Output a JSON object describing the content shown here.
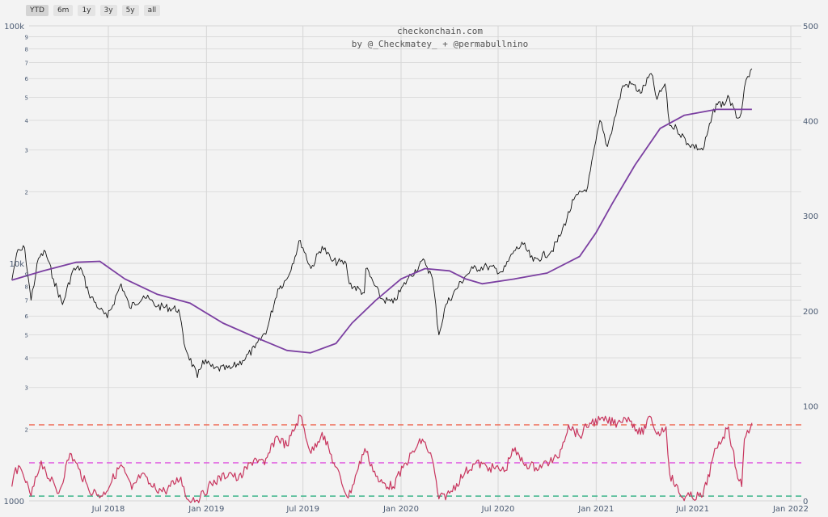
{
  "range_buttons": [
    {
      "label": "YTD",
      "active": true
    },
    {
      "label": "6m",
      "active": false
    },
    {
      "label": "1y",
      "active": false
    },
    {
      "label": "3y",
      "active": false
    },
    {
      "label": "5y",
      "active": false
    },
    {
      "label": "all",
      "active": false
    }
  ],
  "credits": {
    "line1": "checkonchain.com",
    "line2": "by @_Checkmatey_ + @permabullnino"
  },
  "colors": {
    "price": "#111111",
    "moving_average": "#7b3fa1",
    "oscillator": "#c8365f",
    "upper_band": "#ef6a55",
    "mid_band": "#e055e0",
    "lower_band": "#3bb48a",
    "grid": "#d6d6d6",
    "background": "#f3f3f3"
  },
  "chart_data": {
    "type": "line",
    "title": "",
    "x_ticks": [
      "Jul 2018",
      "Jan 2019",
      "Jul 2019",
      "Jan 2020",
      "Jul 2020",
      "Jan 2021",
      "Jul 2021",
      "Jan 2022"
    ],
    "x_range": [
      "2018-01-01",
      "2022-01-01"
    ],
    "price_axis": {
      "scale": "log",
      "range": [
        1000,
        100000
      ],
      "major_labels": [
        "1000",
        "10k",
        "100k"
      ],
      "minor_labels": [
        "2",
        "3",
        "4",
        "5",
        "6",
        "7",
        "8",
        "9"
      ]
    },
    "right_axis": {
      "range": [
        0,
        500
      ],
      "labels": [
        "0",
        "100",
        "200",
        "300",
        "400",
        "500"
      ]
    },
    "series": [
      {
        "role": "price",
        "axis": "left-log",
        "points": [
          [
            "2018-01-01",
            8500
          ],
          [
            "2018-01-10",
            11000
          ],
          [
            "2018-01-25",
            11600
          ],
          [
            "2018-02-06",
            7000
          ],
          [
            "2018-02-20",
            10500
          ],
          [
            "2018-03-05",
            11200
          ],
          [
            "2018-03-20",
            8600
          ],
          [
            "2018-04-06",
            6700
          ],
          [
            "2018-04-25",
            9300
          ],
          [
            "2018-05-10",
            9600
          ],
          [
            "2018-05-25",
            7500
          ],
          [
            "2018-06-15",
            6400
          ],
          [
            "2018-06-29",
            5900
          ],
          [
            "2018-07-25",
            8200
          ],
          [
            "2018-08-10",
            6500
          ],
          [
            "2018-09-05",
            7300
          ],
          [
            "2018-10-01",
            6600
          ],
          [
            "2018-11-10",
            6400
          ],
          [
            "2018-11-20",
            4600
          ],
          [
            "2018-12-15",
            3300
          ],
          [
            "2018-12-25",
            3900
          ],
          [
            "2019-01-15",
            3600
          ],
          [
            "2019-02-15",
            3600
          ],
          [
            "2019-03-10",
            3900
          ],
          [
            "2019-04-02",
            4400
          ],
          [
            "2019-04-25",
            5300
          ],
          [
            "2019-05-15",
            7800
          ],
          [
            "2019-06-01",
            8600
          ],
          [
            "2019-06-26",
            12500
          ],
          [
            "2019-07-16",
            9500
          ],
          [
            "2019-08-06",
            11800
          ],
          [
            "2019-08-25",
            10200
          ],
          [
            "2019-09-20",
            10000
          ],
          [
            "2019-09-26",
            8200
          ],
          [
            "2019-10-24",
            7500
          ],
          [
            "2019-10-27",
            9500
          ],
          [
            "2019-11-25",
            7100
          ],
          [
            "2019-12-17",
            6800
          ],
          [
            "2020-01-15",
            8700
          ],
          [
            "2020-02-14",
            10300
          ],
          [
            "2020-02-29",
            8600
          ],
          [
            "2020-03-12",
            5000
          ],
          [
            "2020-03-25",
            6700
          ],
          [
            "2020-04-30",
            8800
          ],
          [
            "2020-05-15",
            9500
          ],
          [
            "2020-06-10",
            9700
          ],
          [
            "2020-07-10",
            9200
          ],
          [
            "2020-07-31",
            11300
          ],
          [
            "2020-08-17",
            12000
          ],
          [
            "2020-09-05",
            10200
          ],
          [
            "2020-10-10",
            11300
          ],
          [
            "2020-10-25",
            13000
          ],
          [
            "2020-11-20",
            18500
          ],
          [
            "2020-12-16",
            21000
          ],
          [
            "2021-01-08",
            40000
          ],
          [
            "2021-01-22",
            31000
          ],
          [
            "2021-02-20",
            56000
          ],
          [
            "2021-03-10",
            57000
          ],
          [
            "2021-03-25",
            52000
          ],
          [
            "2021-04-14",
            63000
          ],
          [
            "2021-04-25",
            49000
          ],
          [
            "2021-05-10",
            57000
          ],
          [
            "2021-05-19",
            38000
          ],
          [
            "2021-06-01",
            37000
          ],
          [
            "2021-06-22",
            32000
          ],
          [
            "2021-07-20",
            30000
          ],
          [
            "2021-08-14",
            47000
          ],
          [
            "2021-08-31",
            47000
          ],
          [
            "2021-09-05",
            51000
          ],
          [
            "2021-09-21",
            41000
          ],
          [
            "2021-09-30",
            43000
          ],
          [
            "2021-10-06",
            55000
          ],
          [
            "2021-10-15",
            61000
          ],
          [
            "2021-10-20",
            66000
          ]
        ]
      },
      {
        "role": "moving_average",
        "axis": "left-log",
        "points": [
          [
            "2018-01-01",
            8500
          ],
          [
            "2018-03-01",
            9300
          ],
          [
            "2018-05-01",
            10100
          ],
          [
            "2018-06-15",
            10200
          ],
          [
            "2018-08-01",
            8600
          ],
          [
            "2018-10-01",
            7400
          ],
          [
            "2018-12-01",
            6800
          ],
          [
            "2019-02-01",
            5600
          ],
          [
            "2019-04-01",
            4900
          ],
          [
            "2019-06-01",
            4300
          ],
          [
            "2019-07-15",
            4200
          ],
          [
            "2019-09-01",
            4600
          ],
          [
            "2019-10-01",
            5600
          ],
          [
            "2019-11-15",
            7000
          ],
          [
            "2020-01-01",
            8600
          ],
          [
            "2020-02-15",
            9500
          ],
          [
            "2020-04-01",
            9300
          ],
          [
            "2020-05-01",
            8600
          ],
          [
            "2020-06-01",
            8200
          ],
          [
            "2020-08-01",
            8600
          ],
          [
            "2020-10-01",
            9100
          ],
          [
            "2020-12-01",
            10700
          ],
          [
            "2021-01-01",
            13500
          ],
          [
            "2021-02-01",
            18000
          ],
          [
            "2021-03-15",
            26000
          ],
          [
            "2021-05-01",
            37000
          ],
          [
            "2021-06-15",
            42000
          ],
          [
            "2021-08-15",
            44500
          ],
          [
            "2021-10-20",
            44500
          ]
        ]
      },
      {
        "role": "oscillator",
        "axis": "right",
        "points": [
          [
            "2018-01-01",
            15
          ],
          [
            "2018-01-08",
            35
          ],
          [
            "2018-01-22",
            28
          ],
          [
            "2018-02-06",
            5
          ],
          [
            "2018-02-25",
            42
          ],
          [
            "2018-03-06",
            30
          ],
          [
            "2018-03-30",
            8
          ],
          [
            "2018-04-20",
            50
          ],
          [
            "2018-05-06",
            34
          ],
          [
            "2018-05-25",
            12
          ],
          [
            "2018-06-20",
            5
          ],
          [
            "2018-07-25",
            38
          ],
          [
            "2018-08-14",
            12
          ],
          [
            "2018-09-01",
            28
          ],
          [
            "2018-09-20",
            15
          ],
          [
            "2018-10-15",
            10
          ],
          [
            "2018-11-14",
            25
          ],
          [
            "2018-11-25",
            2
          ],
          [
            "2018-12-20",
            3
          ],
          [
            "2019-01-10",
            18
          ],
          [
            "2019-02-15",
            30
          ],
          [
            "2019-03-01",
            22
          ],
          [
            "2019-04-02",
            45
          ],
          [
            "2019-04-20",
            38
          ],
          [
            "2019-05-12",
            68
          ],
          [
            "2019-06-01",
            58
          ],
          [
            "2019-06-26",
            90
          ],
          [
            "2019-07-16",
            50
          ],
          [
            "2019-08-06",
            72
          ],
          [
            "2019-08-28",
            40
          ],
          [
            "2019-09-24",
            3
          ],
          [
            "2019-10-10",
            30
          ],
          [
            "2019-10-25",
            55
          ],
          [
            "2019-11-20",
            20
          ],
          [
            "2019-12-17",
            15
          ],
          [
            "2020-01-10",
            40
          ],
          [
            "2020-02-10",
            65
          ],
          [
            "2020-02-28",
            45
          ],
          [
            "2020-03-12",
            2
          ],
          [
            "2020-04-01",
            8
          ],
          [
            "2020-04-30",
            30
          ],
          [
            "2020-05-20",
            40
          ],
          [
            "2020-06-15",
            35
          ],
          [
            "2020-07-15",
            32
          ],
          [
            "2020-07-28",
            55
          ],
          [
            "2020-08-17",
            40
          ],
          [
            "2020-09-10",
            35
          ],
          [
            "2020-10-21",
            45
          ],
          [
            "2020-11-10",
            80
          ],
          [
            "2020-12-01",
            68
          ],
          [
            "2020-12-20",
            82
          ],
          [
            "2021-01-08",
            85
          ],
          [
            "2021-02-10",
            82
          ],
          [
            "2021-02-22",
            88
          ],
          [
            "2021-03-08",
            84
          ],
          [
            "2021-03-25",
            70
          ],
          [
            "2021-04-14",
            88
          ],
          [
            "2021-04-25",
            70
          ],
          [
            "2021-05-12",
            78
          ],
          [
            "2021-05-19",
            28
          ],
          [
            "2021-06-10",
            4
          ],
          [
            "2021-07-20",
            5
          ],
          [
            "2021-08-14",
            55
          ],
          [
            "2021-09-06",
            78
          ],
          [
            "2021-09-21",
            32
          ],
          [
            "2021-10-01",
            15
          ],
          [
            "2021-10-06",
            65
          ],
          [
            "2021-10-20",
            82
          ]
        ]
      }
    ],
    "bands": [
      {
        "role": "upper_band",
        "value": 80
      },
      {
        "role": "mid_band",
        "value": 40
      },
      {
        "role": "lower_band",
        "value": 5
      }
    ],
    "grid": true,
    "legend": "none"
  }
}
